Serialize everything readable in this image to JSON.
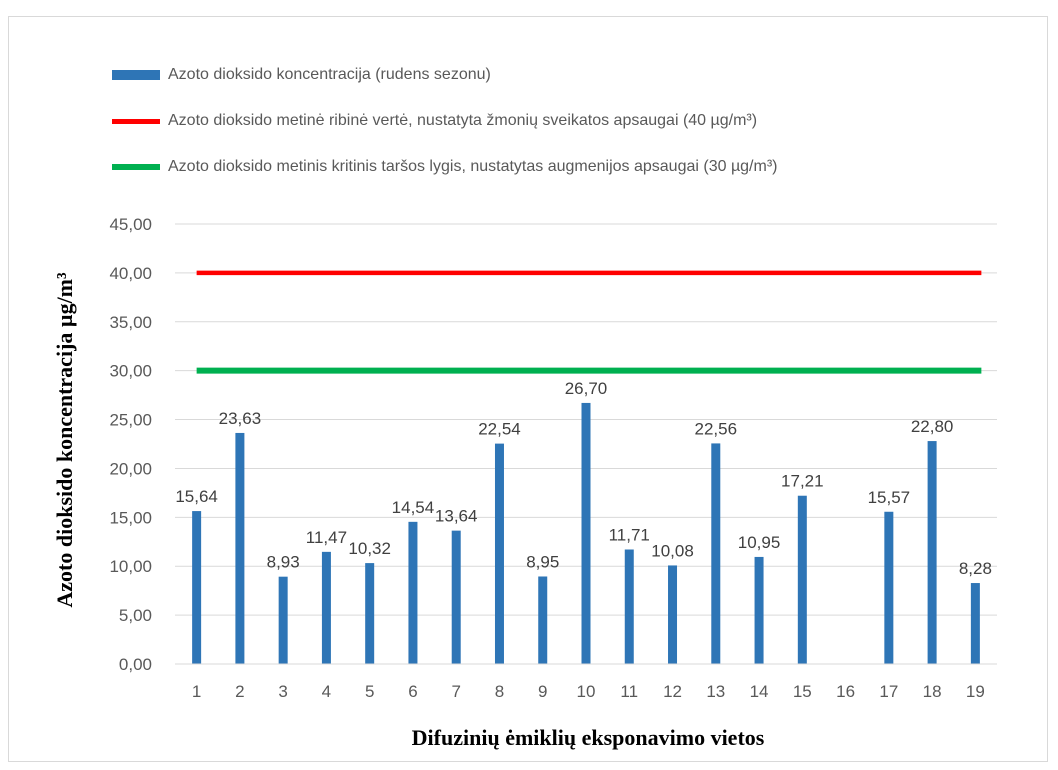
{
  "legend": {
    "bar_label": "Azoto dioksido koncentracija (rudens sezonu)",
    "red_label": "Azoto dioksido metinė ribinė vertė, nustatyta žmonių sveikatos apsaugai  (40 µg/m³)",
    "green_label": "Azoto dioksido metinis kritinis taršos lygis, nustatytas augmenijos apsaugai  (30 µg/m³)"
  },
  "colors": {
    "bar": "#2e75b6",
    "red_line": "#ff0000",
    "green_line": "#00b050",
    "grid": "#d9d9d9",
    "text": "#595959"
  },
  "chart_data": {
    "type": "bar",
    "categories": [
      "1",
      "2",
      "3",
      "4",
      "5",
      "6",
      "7",
      "8",
      "9",
      "10",
      "11",
      "12",
      "13",
      "14",
      "15",
      "16",
      "17",
      "18",
      "19"
    ],
    "series": [
      {
        "name": "Azoto dioksido koncentracija (rudens sezonu)",
        "values": [
          15.64,
          23.63,
          8.93,
          11.47,
          10.32,
          14.54,
          13.64,
          22.54,
          8.95,
          26.7,
          11.71,
          10.08,
          22.56,
          10.95,
          17.21,
          null,
          15.57,
          22.8,
          8.28
        ],
        "data_labels": [
          "15,64",
          "23,63",
          "8,93",
          "11,47",
          "10,32",
          "14,54",
          "13,64",
          "22,54",
          "8,95",
          "26,70",
          "11,71",
          "10,08",
          "22,56",
          "10,95",
          "17,21",
          "",
          "15,57",
          "22,80",
          "8,28"
        ]
      }
    ],
    "reference_lines": [
      {
        "name": "Azoto dioksido metinė ribinė vertė, nustatyta žmonių sveikatos apsaugai  (40 µg/m³)",
        "value": 40,
        "color": "#ff0000"
      },
      {
        "name": "Azoto dioksido metinis kritinis taršos lygis, nustatytas augmenijos apsaugai  (30 µg/m³)",
        "value": 30,
        "color": "#00b050"
      }
    ],
    "xlabel": "Difuzinių ėmiklių eksponavimo vietos",
    "ylabel": "Azoto dioksido koncentracija  µg/m³",
    "ylim": [
      0,
      45
    ],
    "yticks": [
      0,
      5,
      10,
      15,
      20,
      25,
      30,
      35,
      40,
      45
    ],
    "ytick_labels": [
      "0,00",
      "5,00",
      "10,00",
      "15,00",
      "20,00",
      "25,00",
      "30,00",
      "35,00",
      "40,00",
      "45,00"
    ],
    "grid": true,
    "legend_position": "top-left"
  }
}
